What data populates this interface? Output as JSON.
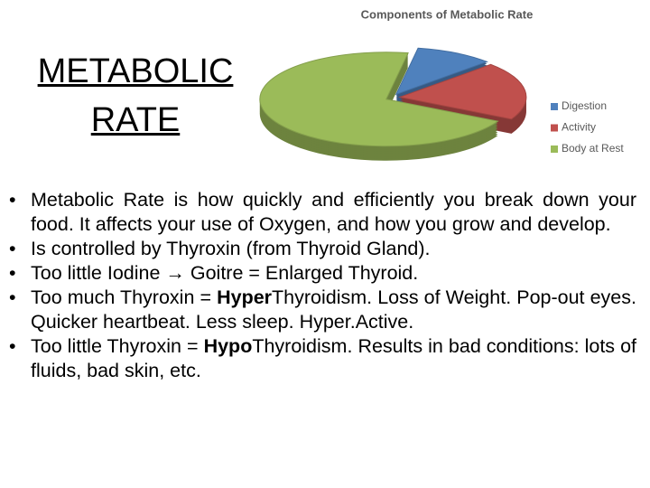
{
  "title": [
    "METABOLIC",
    "RATE"
  ],
  "chart_data": {
    "type": "pie",
    "title": "Components of Metabolic Rate",
    "categories": [
      "Digestion",
      "Activity",
      "Body at Rest"
    ],
    "values": [
      10,
      20,
      70
    ],
    "colors": [
      "#4f81bd",
      "#c0504d",
      "#9bbb59"
    ],
    "legend": "right"
  },
  "bullets": [
    [
      {
        "text": "Metabolic Rate is how quickly and efficiently you break down your food. It affects your use of Oxygen, and how you grow and develop.",
        "bold": false
      }
    ],
    [
      {
        "text": "Is controlled by Thyroxin (from Thyroid Gland).",
        "bold": false
      }
    ],
    [
      {
        "text": "Too little Iodine → Goitre = Enlarged Thyroid.",
        "bold": false
      }
    ],
    [
      {
        "text": "Too much Thyroxin = ",
        "bold": false
      },
      {
        "text": "Hyper",
        "bold": true
      },
      {
        "text": "Thyroidism. Loss of Weight. Pop-out eyes. Quicker heartbeat. Less sleep. Hyper.Active.",
        "bold": false
      }
    ],
    [
      {
        "text": "Too little Thyroxin = ",
        "bold": false
      },
      {
        "text": "Hypo",
        "bold": true
      },
      {
        "text": "Thyroidism. Results in bad conditions: lots of fluids, bad skin, etc.",
        "bold": false
      }
    ]
  ]
}
